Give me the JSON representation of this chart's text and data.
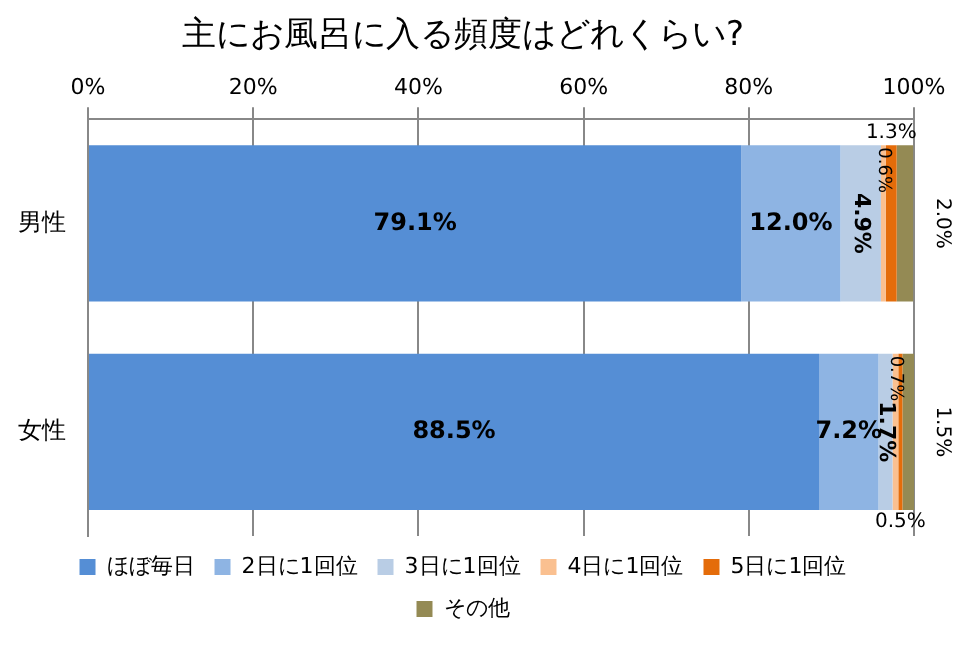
{
  "chart_data": {
    "type": "bar",
    "orientation": "horizontal",
    "stacked": true,
    "title": "主にお風呂に入る頻度はどれくらい?",
    "categories": [
      "男性",
      "女性"
    ],
    "series": [
      {
        "name": "ほぼ毎日",
        "color": "#558ed5",
        "values": [
          79.1,
          88.5
        ],
        "value_labels": [
          "79.1%",
          "88.5%"
        ]
      },
      {
        "name": "2日に1回位",
        "color": "#8eb4e3",
        "values": [
          12.0,
          7.2
        ],
        "value_labels": [
          "12.0%",
          "7.2%"
        ]
      },
      {
        "name": "3日に1回位",
        "color": "#b9cde5",
        "values": [
          4.9,
          1.7
        ],
        "value_labels": [
          "4.9%",
          "1.7%"
        ]
      },
      {
        "name": "4日に1回位",
        "color": "#fac090",
        "values": [
          0.6,
          0.7
        ],
        "value_labels": [
          "0.6%",
          "0.7%"
        ]
      },
      {
        "name": "5日に1回位",
        "color": "#e46c0a",
        "values": [
          1.3,
          0.5
        ],
        "value_labels": [
          "1.3%",
          "0.5%"
        ]
      },
      {
        "name": "その他",
        "color": "#948a54",
        "values": [
          2.0,
          1.5
        ],
        "value_labels": [
          "2.0%",
          "1.5%"
        ]
      }
    ],
    "xlim": [
      0,
      100
    ],
    "xticks": [
      {
        "value": 0,
        "label": "0%"
      },
      {
        "value": 20,
        "label": "20%"
      },
      {
        "value": 40,
        "label": "40%"
      },
      {
        "value": 60,
        "label": "60%"
      },
      {
        "value": 80,
        "label": "80%"
      },
      {
        "value": 100,
        "label": "100%"
      }
    ],
    "grid": "x",
    "legend": "bottom"
  }
}
